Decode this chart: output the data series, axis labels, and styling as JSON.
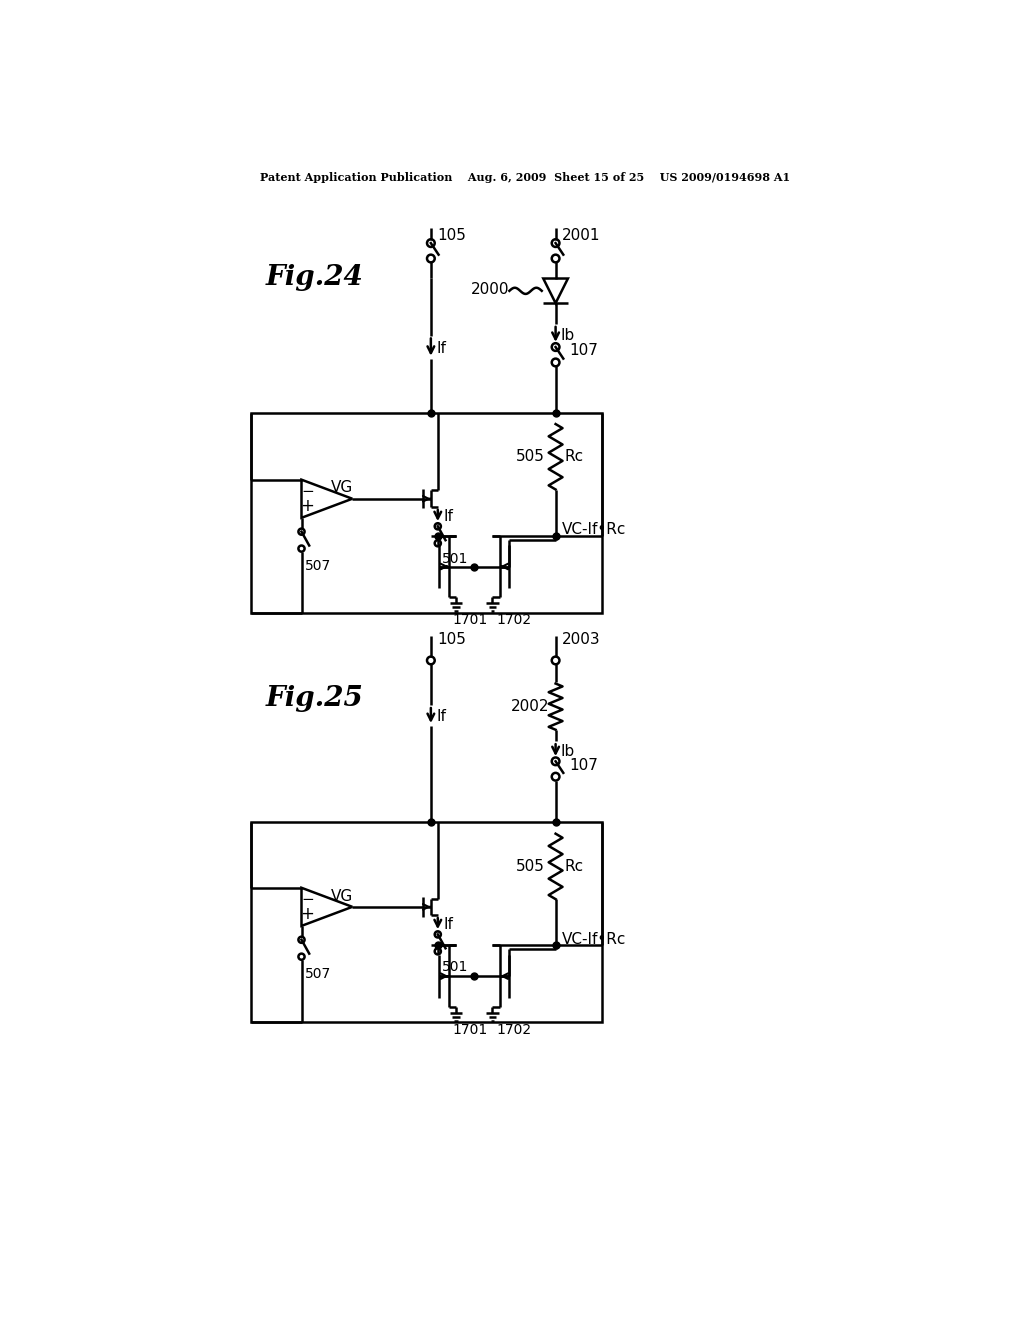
{
  "bg_color": "#ffffff",
  "header": "Patent Application Publication    Aug. 6, 2009  Sheet 15 of 25    US 2009/0194698 A1",
  "fig24_label": "Fig.24",
  "fig25_label": "Fig.25"
}
